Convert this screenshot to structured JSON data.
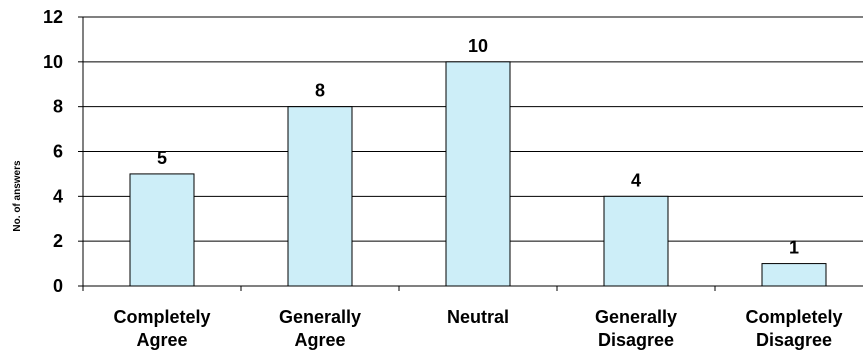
{
  "chart_data": {
    "type": "bar",
    "categories": [
      [
        "Completely",
        "Agree"
      ],
      [
        "Generally",
        "Agree"
      ],
      [
        "Neutral"
      ],
      [
        "Generally",
        "Disagree"
      ],
      [
        "Completely",
        "Disagree"
      ]
    ],
    "values": [
      5,
      8,
      10,
      4,
      1
    ],
    "title": "",
    "xlabel": "",
    "ylabel": "No. of answers",
    "ylim": [
      0,
      12
    ],
    "yticks": [
      0,
      2,
      4,
      6,
      8,
      10,
      12
    ],
    "grid": true,
    "legend": "none",
    "bar_color": "#cdeef8",
    "bar_edge_color": "#000000",
    "grid_color": "#000000"
  }
}
